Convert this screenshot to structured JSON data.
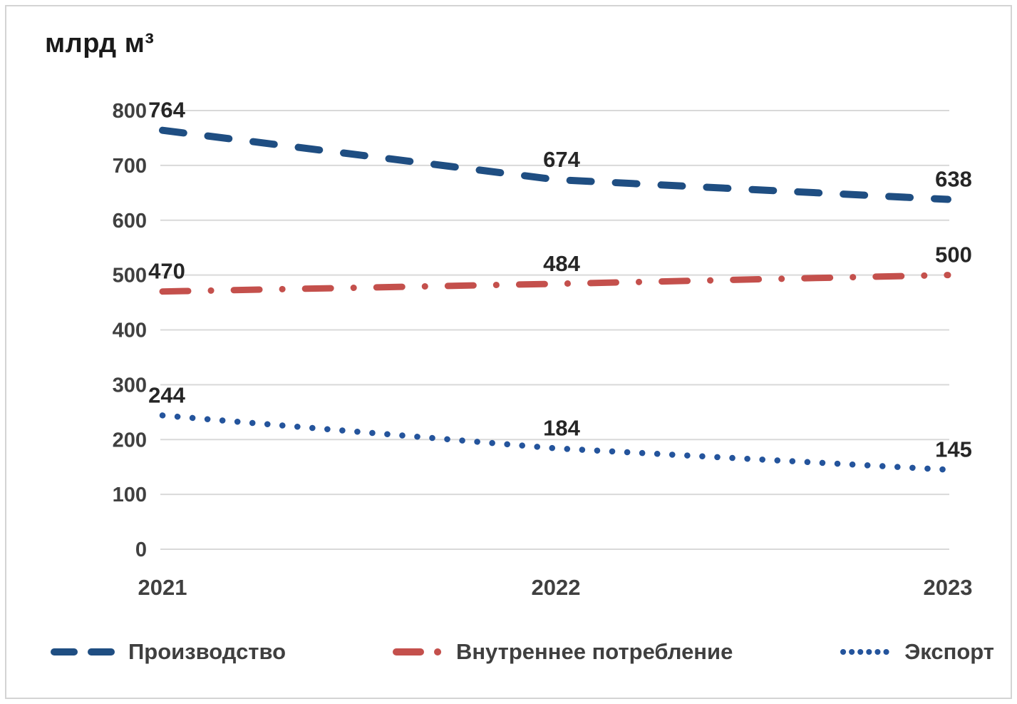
{
  "frame": {
    "background": "#ffffff",
    "border_color": "#d4d4d4"
  },
  "colors": {
    "grid": "#d9d9d9",
    "axis_text": "#404040",
    "data_label_text": "#262626",
    "title_text": "#1a1a1a",
    "legend_text": "#3f3f3f"
  },
  "chart_data": {
    "type": "line",
    "title": "млрд м³",
    "xlabel": "",
    "ylabel": "млрд м³",
    "categories": [
      "2021",
      "2022",
      "2023"
    ],
    "yticks": [
      0,
      100,
      200,
      300,
      400,
      500,
      600,
      700,
      800
    ],
    "ylim": [
      0,
      800
    ],
    "grid": "horizontal",
    "legend_position": "bottom",
    "series": [
      {
        "name": "Производство",
        "values": [
          764,
          674,
          638
        ],
        "labels": [
          "764",
          "674",
          "638"
        ],
        "color": "#1f4e82",
        "line_style": "dashed"
      },
      {
        "name": "Внутреннее потребление",
        "values": [
          470,
          484,
          500
        ],
        "labels": [
          "470",
          "484",
          "500"
        ],
        "color": "#c4504c",
        "line_style": "dash-dot"
      },
      {
        "name": "Экспорт",
        "values": [
          244,
          184,
          145
        ],
        "labels": [
          "244",
          "184",
          "145"
        ],
        "color": "#24549c",
        "line_style": "dotted"
      }
    ]
  }
}
